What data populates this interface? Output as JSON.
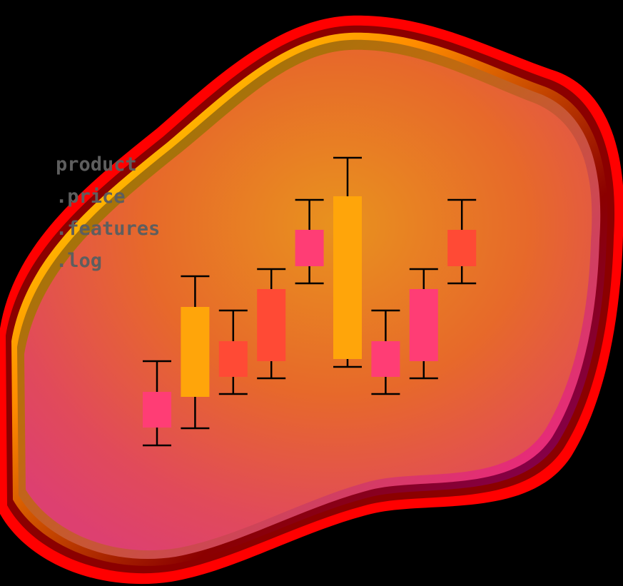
{
  "label_lines": [
    "product",
    ".price",
    ".features",
    ".log"
  ],
  "colors": {
    "background": "#000000",
    "blob_outer_ring": "#ff0000",
    "blob_ring_dark_red": "#8b0000",
    "blob_ring_olive": "#808000",
    "blob_ring_yellow": "#ffff00",
    "blob_ring_orange": "#ff8c00",
    "blob_ring_magenta": "#ff1493",
    "blob_ring_purple": "#800080",
    "blob_center_top": "#e8901f",
    "blob_center_mid": "#e8622a",
    "blob_center_bottom_right": "#e0406a",
    "label_text": "#5e5e5e",
    "whisker": "#000000",
    "candle_pink": "#ff3d75",
    "candle_orange": "#ffa50a",
    "candle_red": "#ff4a35"
  },
  "chart_data": {
    "type": "candlestick",
    "title": "product.price.features.log",
    "xlabel": "",
    "ylabel": "",
    "axes_visible": false,
    "grid": false,
    "legend": null,
    "value_scale_note": "relative units derived from pixel positions (no axis shown)",
    "ylim": [
      0,
      100
    ],
    "candles": [
      {
        "index": 1,
        "high": 28.8,
        "box_top": 20.2,
        "box_bottom": 10.2,
        "low": 5.2,
        "color": "pink"
      },
      {
        "index": 2,
        "high": 52.6,
        "box_top": 44.0,
        "box_bottom": 18.8,
        "low": 10.0,
        "color": "orange"
      },
      {
        "index": 3,
        "high": 43.0,
        "box_top": 34.4,
        "box_bottom": 24.4,
        "low": 19.6,
        "color": "red"
      },
      {
        "index": 4,
        "high": 54.6,
        "box_top": 49.0,
        "box_bottom": 28.8,
        "low": 24.0,
        "color": "red"
      },
      {
        "index": 5,
        "high": 74.0,
        "box_top": 65.6,
        "box_bottom": 55.4,
        "low": 50.6,
        "color": "pink"
      },
      {
        "index": 6,
        "high": 85.8,
        "box_top": 75.0,
        "box_bottom": 29.4,
        "low": 27.2,
        "color": "orange"
      },
      {
        "index": 7,
        "high": 43.0,
        "box_top": 34.4,
        "box_bottom": 24.4,
        "low": 19.6,
        "color": "pink"
      },
      {
        "index": 8,
        "high": 54.6,
        "box_top": 49.0,
        "box_bottom": 28.8,
        "low": 24.0,
        "color": "pink"
      },
      {
        "index": 9,
        "high": 74.0,
        "box_top": 65.6,
        "box_bottom": 55.4,
        "low": 50.6,
        "color": "red"
      }
    ]
  }
}
